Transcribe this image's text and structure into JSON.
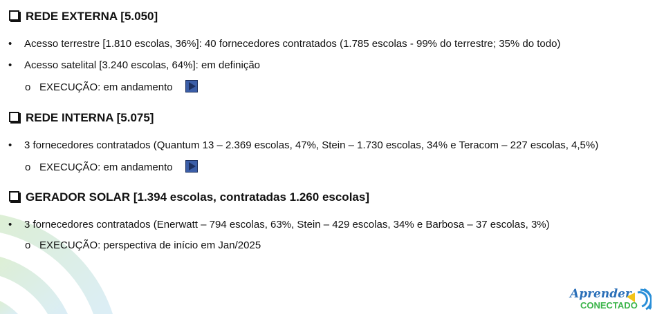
{
  "sections": [
    {
      "title": "REDE EXTERNA [5.050]",
      "bullets": [
        "Acesso terrestre [1.810 escolas, 36%]: 40 fornecedores contratados (1.785 escolas - 99% do terrestre; 35% do todo)",
        "Acesso satelital [3.240 escolas, 64%]: em definição"
      ],
      "sub": "EXECUÇÃO: em andamento"
    },
    {
      "title": "REDE INTERNA [5.075]",
      "bullets": [
        "3 fornecedores contratados (Quantum 13 – 2.369 escolas, 47%, Stein – 1.730 escolas, 34% e Teracom – 227 escolas, 4,5%)"
      ],
      "sub": "EXECUÇÃO: em andamento"
    },
    {
      "title": "GERADOR SOLAR [1.394 escolas, contratadas 1.260 escolas]",
      "bullets": [
        "3 fornecedores contratados (Enerwatt – 794 escolas, 63%, Stein – 429 escolas, 34% e Barbosa – 37 escolas, 3%)"
      ],
      "sub": "EXECUÇÃO: perspectiva de início em Jan/2025"
    }
  ],
  "markers": {
    "bullet": "•",
    "sub": "o"
  },
  "logo": {
    "line1": "Aprender",
    "line2": "CONECTADO"
  },
  "colors": {
    "play_button": "#3b5ea8",
    "logo_blue": "#2a6fb8",
    "logo_green": "#3bb44a"
  }
}
